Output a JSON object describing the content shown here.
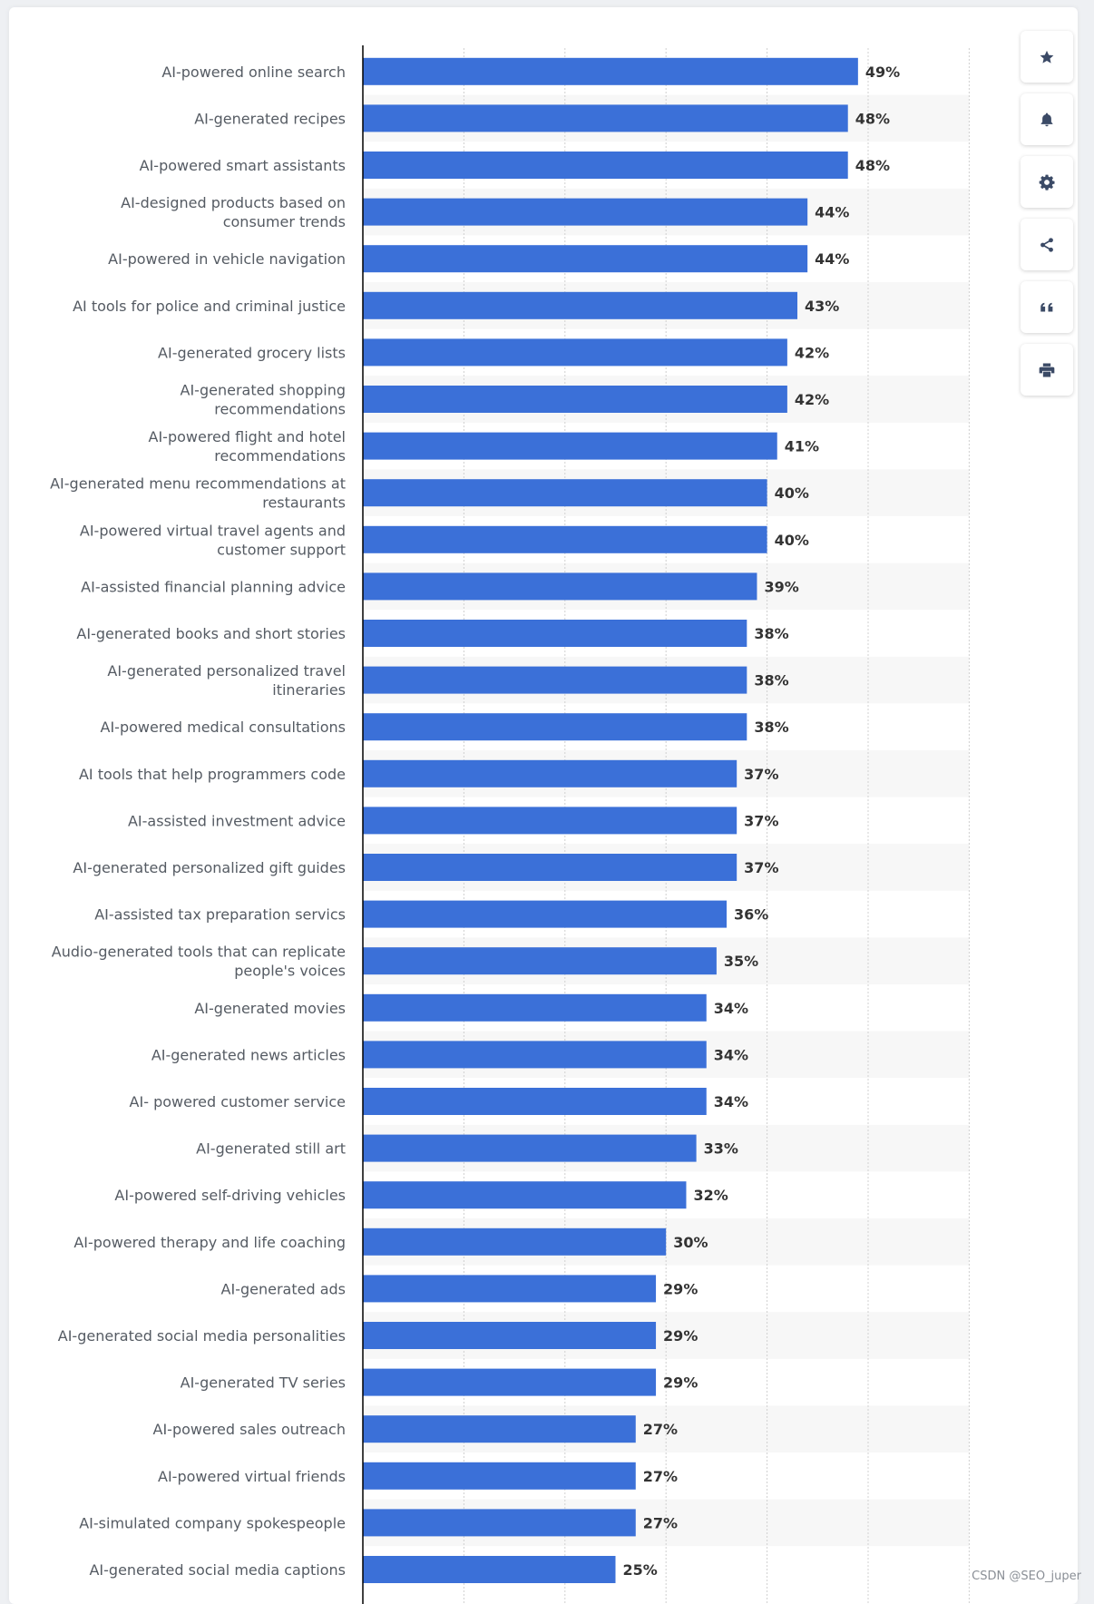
{
  "toolbar": {
    "buttons": [
      {
        "name": "favorite-button",
        "icon": "star-icon"
      },
      {
        "name": "notification-button",
        "icon": "bell-icon"
      },
      {
        "name": "settings-button",
        "icon": "gear-icon"
      },
      {
        "name": "share-button",
        "icon": "share-icon"
      },
      {
        "name": "cite-button",
        "icon": "quote-icon"
      },
      {
        "name": "print-button",
        "icon": "printer-icon"
      }
    ],
    "icon_color": "#3b4a66"
  },
  "watermark": "CSDN @SEO_juper",
  "colors": {
    "bar": "#3b70d8",
    "stripe": "#f7f7f7",
    "grid": "#d0d0d0",
    "axis": "#000000"
  },
  "chart_data": {
    "type": "bar",
    "orientation": "horizontal",
    "unit": "%",
    "xlim": [
      0,
      60
    ],
    "gridlines": [
      10,
      20,
      30,
      40,
      50,
      60
    ],
    "categories": [
      [
        "AI-powered online search"
      ],
      [
        "AI-generated recipes"
      ],
      [
        "AI-powered smart assistants"
      ],
      [
        "AI-designed products based on",
        "consumer trends"
      ],
      [
        "AI-powered in vehicle navigation"
      ],
      [
        "AI tools for police and criminal justice"
      ],
      [
        "AI-generated grocery lists"
      ],
      [
        "AI-generated shopping",
        "recommendations"
      ],
      [
        "AI-powered flight and hotel",
        "recommendations"
      ],
      [
        "AI-generated menu recommendations at",
        "restaurants"
      ],
      [
        "AI-powered virtual travel agents and",
        "customer support"
      ],
      [
        "AI-assisted financial planning advice"
      ],
      [
        "AI-generated books and short stories"
      ],
      [
        "AI-generated personalized travel",
        "itineraries"
      ],
      [
        "AI-powered medical consultations"
      ],
      [
        "AI tools that help programmers code"
      ],
      [
        "AI-assisted investment advice"
      ],
      [
        "AI-generated personalized gift guides"
      ],
      [
        "AI-assisted tax preparation servics"
      ],
      [
        "Audio-generated tools that can replicate",
        "people's voices"
      ],
      [
        "AI-generated movies"
      ],
      [
        "AI-generated news articles"
      ],
      [
        "AI- powered customer service"
      ],
      [
        "AI-generated still art"
      ],
      [
        "AI-powered self-driving vehicles"
      ],
      [
        "AI-powered therapy and life coaching"
      ],
      [
        "AI-generated ads"
      ],
      [
        "AI-generated social media personalities"
      ],
      [
        "AI-generated TV series"
      ],
      [
        "AI-powered sales outreach"
      ],
      [
        "AI-powered virtual friends"
      ],
      [
        "AI-simulated company spokespeople"
      ],
      [
        "AI-generated social media captions"
      ]
    ],
    "values": [
      49,
      48,
      48,
      44,
      44,
      43,
      42,
      42,
      41,
      40,
      40,
      39,
      38,
      38,
      38,
      37,
      37,
      37,
      36,
      35,
      34,
      34,
      34,
      33,
      32,
      30,
      29,
      29,
      29,
      27,
      27,
      27,
      25
    ],
    "value_labels": [
      "49%",
      "48%",
      "48%",
      "44%",
      "44%",
      "43%",
      "42%",
      "42%",
      "41%",
      "40%",
      "40%",
      "39%",
      "38%",
      "38%",
      "38%",
      "37%",
      "37%",
      "37%",
      "36%",
      "35%",
      "34%",
      "34%",
      "34%",
      "33%",
      "32%",
      "30%",
      "29%",
      "29%",
      "29%",
      "27%",
      "27%",
      "27%",
      "25%"
    ]
  }
}
